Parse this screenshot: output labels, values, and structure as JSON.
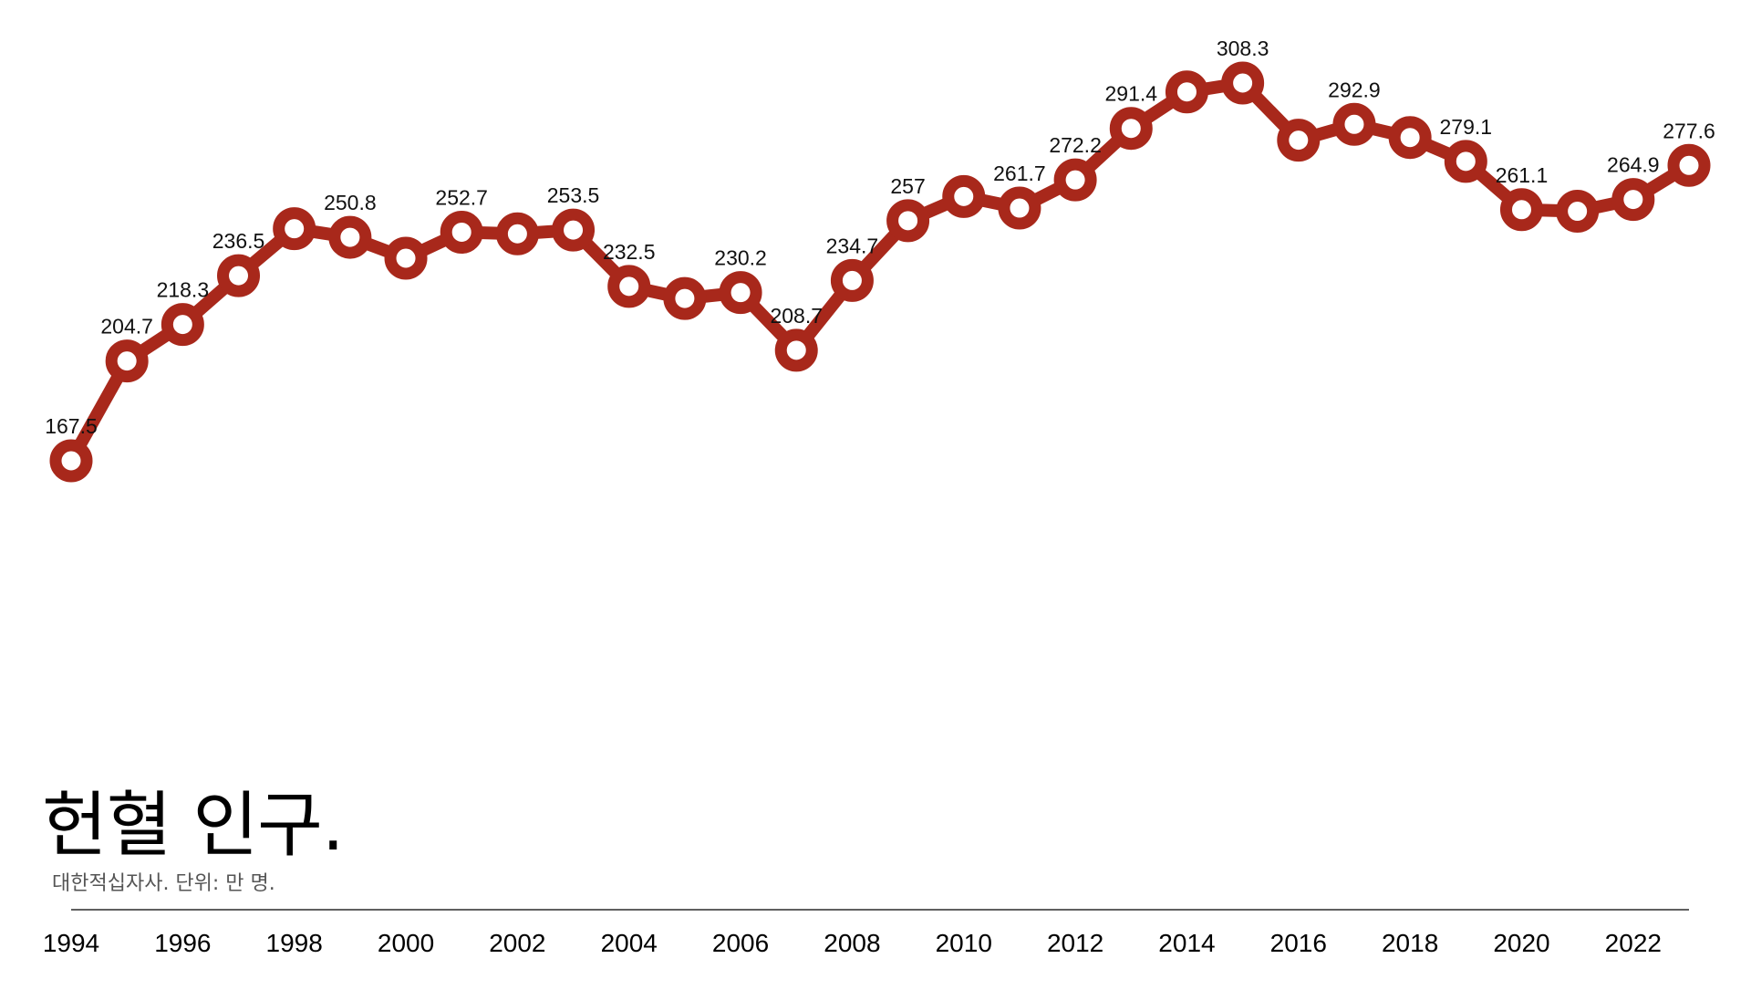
{
  "chart_data": {
    "type": "line",
    "title": "헌혈 인구.",
    "subtitle": "대한적십자사. 단위: 만 명.",
    "xlabel": "",
    "ylabel": "",
    "x": [
      1994,
      1995,
      1996,
      1997,
      1998,
      1999,
      2000,
      2001,
      2002,
      2003,
      2004,
      2005,
      2006,
      2007,
      2008,
      2009,
      2010,
      2011,
      2012,
      2013,
      2014,
      2015,
      2016,
      2017,
      2018,
      2019,
      2020,
      2021,
      2022,
      2023
    ],
    "values": [
      167.5,
      204.7,
      218.3,
      236.5,
      254.0,
      250.8,
      243.0,
      252.7,
      252.1,
      253.5,
      232.5,
      228.0,
      230.2,
      208.7,
      234.7,
      257,
      266.0,
      261.7,
      272.2,
      291.4,
      305.0,
      308.3,
      287.0,
      292.9,
      288.0,
      279.1,
      261.1,
      260.5,
      264.9,
      277.6
    ],
    "labels": [
      "167.5",
      "204.7",
      "218.3",
      "236.5",
      "",
      "250.8",
      "",
      "252.7",
      "",
      "253.5",
      "232.5",
      "",
      "230.2",
      "208.7",
      "234.7",
      "257",
      "",
      "261.7",
      "272.2",
      "291.4",
      "",
      "308.3",
      "",
      "292.9",
      "",
      "279.1",
      "261.1",
      "",
      "264.9",
      "277.6"
    ],
    "x_ticks": [
      "1994",
      "1996",
      "1998",
      "2000",
      "2002",
      "2004",
      "2006",
      "2008",
      "2010",
      "2012",
      "2014",
      "2016",
      "2018",
      "2020",
      "2022"
    ],
    "xlim": [
      1994,
      2023
    ],
    "ylim": [
      167.5,
      308.3
    ],
    "grid": false,
    "legend": "none",
    "line_color": "#a8281b",
    "marker_fill": "#ffffff",
    "axis_color": "#000000"
  }
}
